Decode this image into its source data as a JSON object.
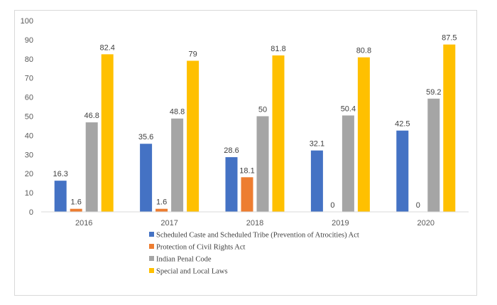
{
  "chart_data": {
    "type": "bar",
    "categories": [
      "2016",
      "2017",
      "2018",
      "2019",
      "2020"
    ],
    "series": [
      {
        "name": "Scheduled Caste and Scheduled Tribe (Prevention of Atrocities) Act",
        "color": "#4472c4",
        "values": [
          16.3,
          35.6,
          28.6,
          32.1,
          42.5
        ]
      },
      {
        "name": "Protection of Civil Rights Act",
        "color": "#ed7d31",
        "values": [
          1.6,
          1.6,
          18.1,
          0,
          0
        ]
      },
      {
        "name": "Indian Penal Code",
        "color": "#a5a5a5",
        "values": [
          46.8,
          48.8,
          50,
          50.4,
          59.2
        ]
      },
      {
        "name": "Special and Local Laws",
        "color": "#ffc000",
        "values": [
          82.4,
          79,
          81.8,
          80.8,
          87.5
        ]
      }
    ],
    "ylim": [
      0,
      100
    ],
    "yticks": [
      "0",
      "10",
      "20",
      "30",
      "40",
      "50",
      "60",
      "70",
      "80",
      "90",
      "100"
    ],
    "legend_position": "bottom",
    "grid": false
  }
}
